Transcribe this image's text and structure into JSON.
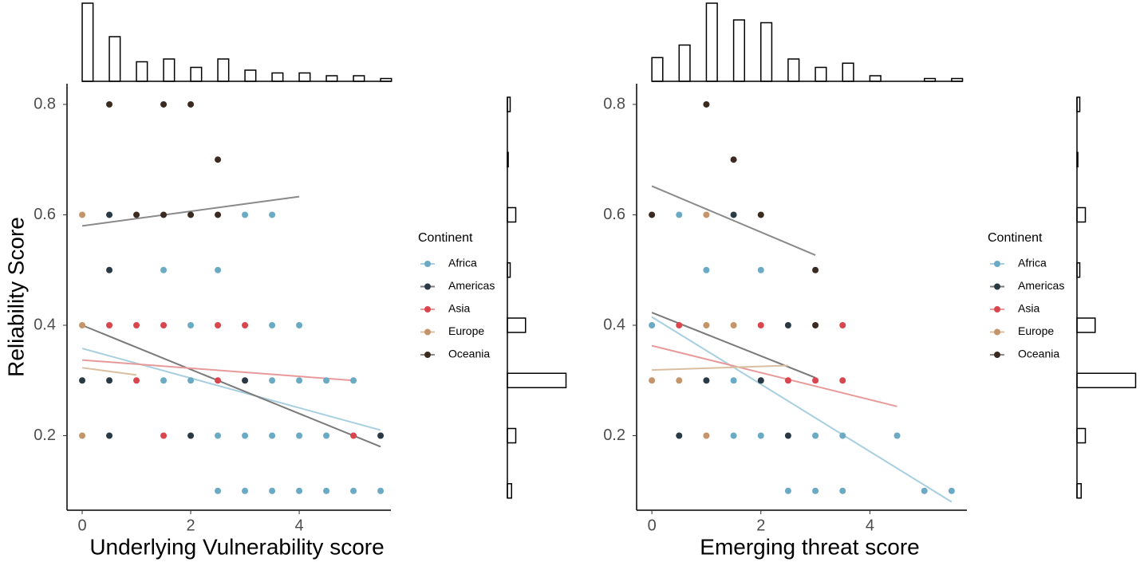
{
  "chart_data": [
    {
      "type": "scatter",
      "x_label": "Underlying Vulnerability score",
      "y_label": "Reliability Score",
      "xlim": [
        -0.28,
        5.69
      ],
      "ylim": [
        0.065,
        0.8375
      ],
      "xticks": [
        0,
        2,
        4
      ],
      "yticks": [
        0.2,
        0.4,
        0.6,
        0.8
      ],
      "legend_title": "Continent",
      "series": [
        {
          "name": "Africa",
          "color": "#6aaac4",
          "x": [
            3,
            3.5,
            1.5,
            2.5,
            2,
            3.5,
            4,
            1.5,
            2,
            3.5,
            4,
            4.5,
            5,
            2.5,
            3,
            3.5,
            4,
            4.5,
            2.5,
            3,
            3.5,
            4,
            4.5,
            5,
            5.5
          ],
          "y": [
            0.6,
            0.6,
            0.5,
            0.5,
            0.4,
            0.4,
            0.4,
            0.3,
            0.3,
            0.3,
            0.3,
            0.3,
            0.3,
            0.2,
            0.2,
            0.2,
            0.2,
            0.2,
            0.1,
            0.1,
            0.1,
            0.1,
            0.1,
            0.1,
            0.1
          ],
          "fit": {
            "color": "#a8cfe0",
            "x": [
              0,
              5.5
            ],
            "y": [
              0.358,
              0.21
            ]
          }
        },
        {
          "name": "Americas",
          "color": "#2a3a45",
          "x": [
            0.5,
            0.5,
            0,
            0.5,
            3,
            0.5,
            2,
            5.5
          ],
          "y": [
            0.6,
            0.5,
            0.3,
            0.3,
            0.3,
            0.2,
            0.2,
            0.2
          ],
          "fit": {
            "color": "#7a7a7a",
            "x": [
              0,
              5.5
            ],
            "y": [
              0.4,
              0.18
            ]
          }
        },
        {
          "name": "Asia",
          "color": "#d9464e",
          "x": [
            0.5,
            1,
            1.5,
            2.5,
            3,
            1,
            2.5,
            1.5,
            5
          ],
          "y": [
            0.4,
            0.4,
            0.4,
            0.4,
            0.4,
            0.3,
            0.3,
            0.2,
            0.2
          ],
          "fit": {
            "color": "#e89a9a",
            "x": [
              0,
              5
            ],
            "y": [
              0.337,
              0.3
            ]
          }
        },
        {
          "name": "Europe",
          "color": "#c4956a",
          "x": [
            0,
            0,
            0
          ],
          "y": [
            0.6,
            0.4,
            0.2
          ],
          "fit": {
            "color": "#d9bf9f",
            "x": [
              0,
              1
            ],
            "y": [
              0.323,
              0.31
            ]
          }
        },
        {
          "name": "Oceania",
          "color": "#3a2a20",
          "x": [
            0.5,
            1.5,
            2,
            2.5,
            1,
            1.5,
            2,
            2.5
          ],
          "y": [
            0.8,
            0.8,
            0.8,
            0.7,
            0.6,
            0.6,
            0.6,
            0.6
          ],
          "fit": {
            "color": "#8a8a8a",
            "x": [
              0,
              4
            ],
            "y": [
              0.58,
              0.633
            ]
          }
        }
      ],
      "top_histogram": {
        "x": [
          0,
          0.5,
          1,
          1.5,
          2,
          2.5,
          3,
          3.5,
          4,
          4.5,
          5,
          5.5
        ],
        "values": [
          28,
          16,
          7,
          8,
          5,
          8,
          4,
          3,
          3,
          2,
          2,
          1
        ]
      },
      "right_histogram": {
        "y": [
          0.8,
          0.7,
          0.6,
          0.5,
          0.4,
          0.3,
          0.2,
          0.1
        ],
        "values": [
          1,
          0.3,
          3,
          1,
          6.5,
          21,
          3,
          1.5
        ]
      }
    },
    {
      "type": "scatter",
      "x_label": "Emerging threat score",
      "xlim": [
        -0.28,
        5.78
      ],
      "ylim": [
        0.065,
        0.8375
      ],
      "xticks": [
        0,
        2,
        4
      ],
      "yticks": [
        0.2,
        0.4,
        0.6,
        0.8
      ],
      "legend_title": "Continent",
      "series": [
        {
          "name": "Africa",
          "color": "#6aaac4",
          "x": [
            0.5,
            1,
            2,
            0,
            1.5,
            2,
            1.5,
            2,
            3,
            3.5,
            4.5,
            2.5,
            3,
            3.5,
            5,
            5.5
          ],
          "y": [
            0.6,
            0.5,
            0.5,
            0.4,
            0.3,
            0.3,
            0.2,
            0.2,
            0.2,
            0.2,
            0.2,
            0.1,
            0.1,
            0.1,
            0.1,
            0.1
          ],
          "fit": {
            "color": "#a8cfe0",
            "x": [
              0,
              5.5
            ],
            "y": [
              0.415,
              0.08
            ]
          }
        },
        {
          "name": "Americas",
          "color": "#2a3a45",
          "x": [
            1.5,
            2.5,
            1,
            2,
            0.5,
            2.5
          ],
          "y": [
            0.6,
            0.4,
            0.3,
            0.3,
            0.2,
            0.2
          ],
          "fit": {
            "color": "#7a7a7a",
            "x": [
              0,
              3
            ],
            "y": [
              0.423,
              0.305
            ]
          }
        },
        {
          "name": "Asia",
          "color": "#d9464e",
          "x": [
            0.5,
            2,
            3.5,
            2.5,
            3,
            3.5
          ],
          "y": [
            0.4,
            0.4,
            0.4,
            0.3,
            0.3,
            0.3
          ],
          "fit": {
            "color": "#e89a9a",
            "x": [
              0,
              4.5
            ],
            "y": [
              0.363,
              0.253
            ]
          }
        },
        {
          "name": "Europe",
          "color": "#c4956a",
          "x": [
            1,
            1,
            1.5,
            0,
            0.5,
            1
          ],
          "y": [
            0.6,
            0.4,
            0.4,
            0.3,
            0.3,
            0.2
          ],
          "fit": {
            "color": "#d9bf9f",
            "x": [
              0,
              2.5
            ],
            "y": [
              0.319,
              0.327
            ]
          }
        },
        {
          "name": "Oceania",
          "color": "#3a2a20",
          "x": [
            1,
            1.5,
            0,
            2,
            3,
            3
          ],
          "y": [
            0.8,
            0.7,
            0.6,
            0.6,
            0.5,
            0.4
          ],
          "fit": {
            "color": "#8a8a8a",
            "x": [
              0,
              3
            ],
            "y": [
              0.652,
              0.527
            ]
          }
        }
      ],
      "top_histogram": {
        "x": [
          0,
          0.5,
          1,
          1.5,
          2,
          2.5,
          3,
          3.5,
          4,
          5,
          5.5
        ],
        "values": [
          8.5,
          13,
          28,
          22,
          21,
          8,
          5,
          6.5,
          2,
          1,
          1
        ]
      },
      "right_histogram": {
        "y": [
          0.8,
          0.7,
          0.6,
          0.5,
          0.4,
          0.3,
          0.2,
          0.1
        ],
        "values": [
          1,
          0.3,
          3,
          1,
          6.5,
          21,
          3,
          1.5
        ]
      }
    }
  ]
}
